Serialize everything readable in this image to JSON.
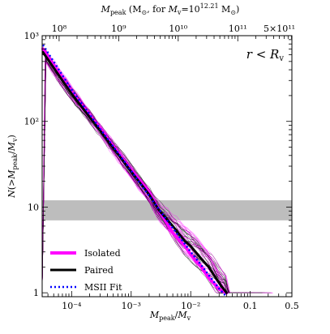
{
  "chart_data": {
    "type": "line",
    "xlabel": "M_peak / M_v",
    "ylabel": "N(> M_peak / M_v)",
    "top_xlabel": "M_peak (M_⊙, for M_v = 10^12.21 M_⊙)",
    "annotation": "r < R_v",
    "x_scale": "log",
    "y_scale": "log",
    "xlim": [
      3.2e-05,
      0.5
    ],
    "ylim": [
      0.9,
      1000
    ],
    "x_ticks": [
      {
        "value": 0.0001,
        "label": "10⁻⁴"
      },
      {
        "value": 0.001,
        "label": "10⁻³"
      },
      {
        "value": 0.01,
        "label": "10⁻²"
      },
      {
        "value": 0.1,
        "label": "0.1"
      },
      {
        "value": 0.5,
        "label": "0.5"
      }
    ],
    "y_ticks": [
      {
        "value": 1,
        "label": "1"
      },
      {
        "value": 10,
        "label": "10"
      },
      {
        "value": 100,
        "label": "10²"
      },
      {
        "value": 1000,
        "label": "10³"
      }
    ],
    "top_ticks": [
      {
        "value": 100000000,
        "label": "10⁸"
      },
      {
        "value": 1000000000,
        "label": "10⁹"
      },
      {
        "value": 10000000000,
        "label": "10¹⁰"
      },
      {
        "value": 100000000000,
        "label": "10¹¹"
      },
      {
        "value": 500000000000,
        "label": "5×10¹¹"
      }
    ],
    "top_axis_log10_mv": 12.21,
    "shaded_band": {
      "y_min": 7,
      "y_max": 12,
      "color": "#bdbdbd"
    },
    "legend": [
      {
        "label": "Isolated",
        "color": "#ff00ff",
        "style": "solid"
      },
      {
        "label": "Paired",
        "color": "#000000",
        "style": "solid"
      },
      {
        "label": "MSII Fit",
        "color": "#0000ff",
        "style": "dotted"
      }
    ],
    "series": [
      {
        "label": "Isolated",
        "color": "#ff00ff",
        "x": [
          3.3e-05,
          0.0001,
          0.0003,
          0.001,
          0.002,
          0.003,
          0.005,
          0.008,
          0.01,
          0.015,
          0.02,
          0.03,
          0.04
        ],
        "y": [
          700,
          220,
          82,
          27,
          15,
          9,
          5,
          3.5,
          2.8,
          2.0,
          1.5,
          1.1,
          1.0
        ]
      },
      {
        "label": "Paired",
        "color": "#000000",
        "x": [
          3.3e-05,
          0.0001,
          0.0003,
          0.001,
          0.002,
          0.003,
          0.005,
          0.008,
          0.01,
          0.015,
          0.02,
          0.03,
          0.04
        ],
        "y": [
          640,
          210,
          78,
          26,
          14,
          9,
          6,
          4,
          3.5,
          2.5,
          2,
          1.3,
          1.0
        ]
      },
      {
        "label": "MSII Fit",
        "color": "#0000ff",
        "x": [
          3.3e-05,
          0.0001,
          0.0003,
          0.001,
          0.002,
          0.003,
          0.005,
          0.008,
          0.01,
          0.015,
          0.02,
          0.03,
          0.04
        ],
        "y": [
          780,
          235,
          82,
          26.5,
          13.5,
          9.2,
          5.7,
          3.7,
          3.0,
          2.1,
          1.62,
          1.12,
          0.9
        ]
      }
    ]
  }
}
